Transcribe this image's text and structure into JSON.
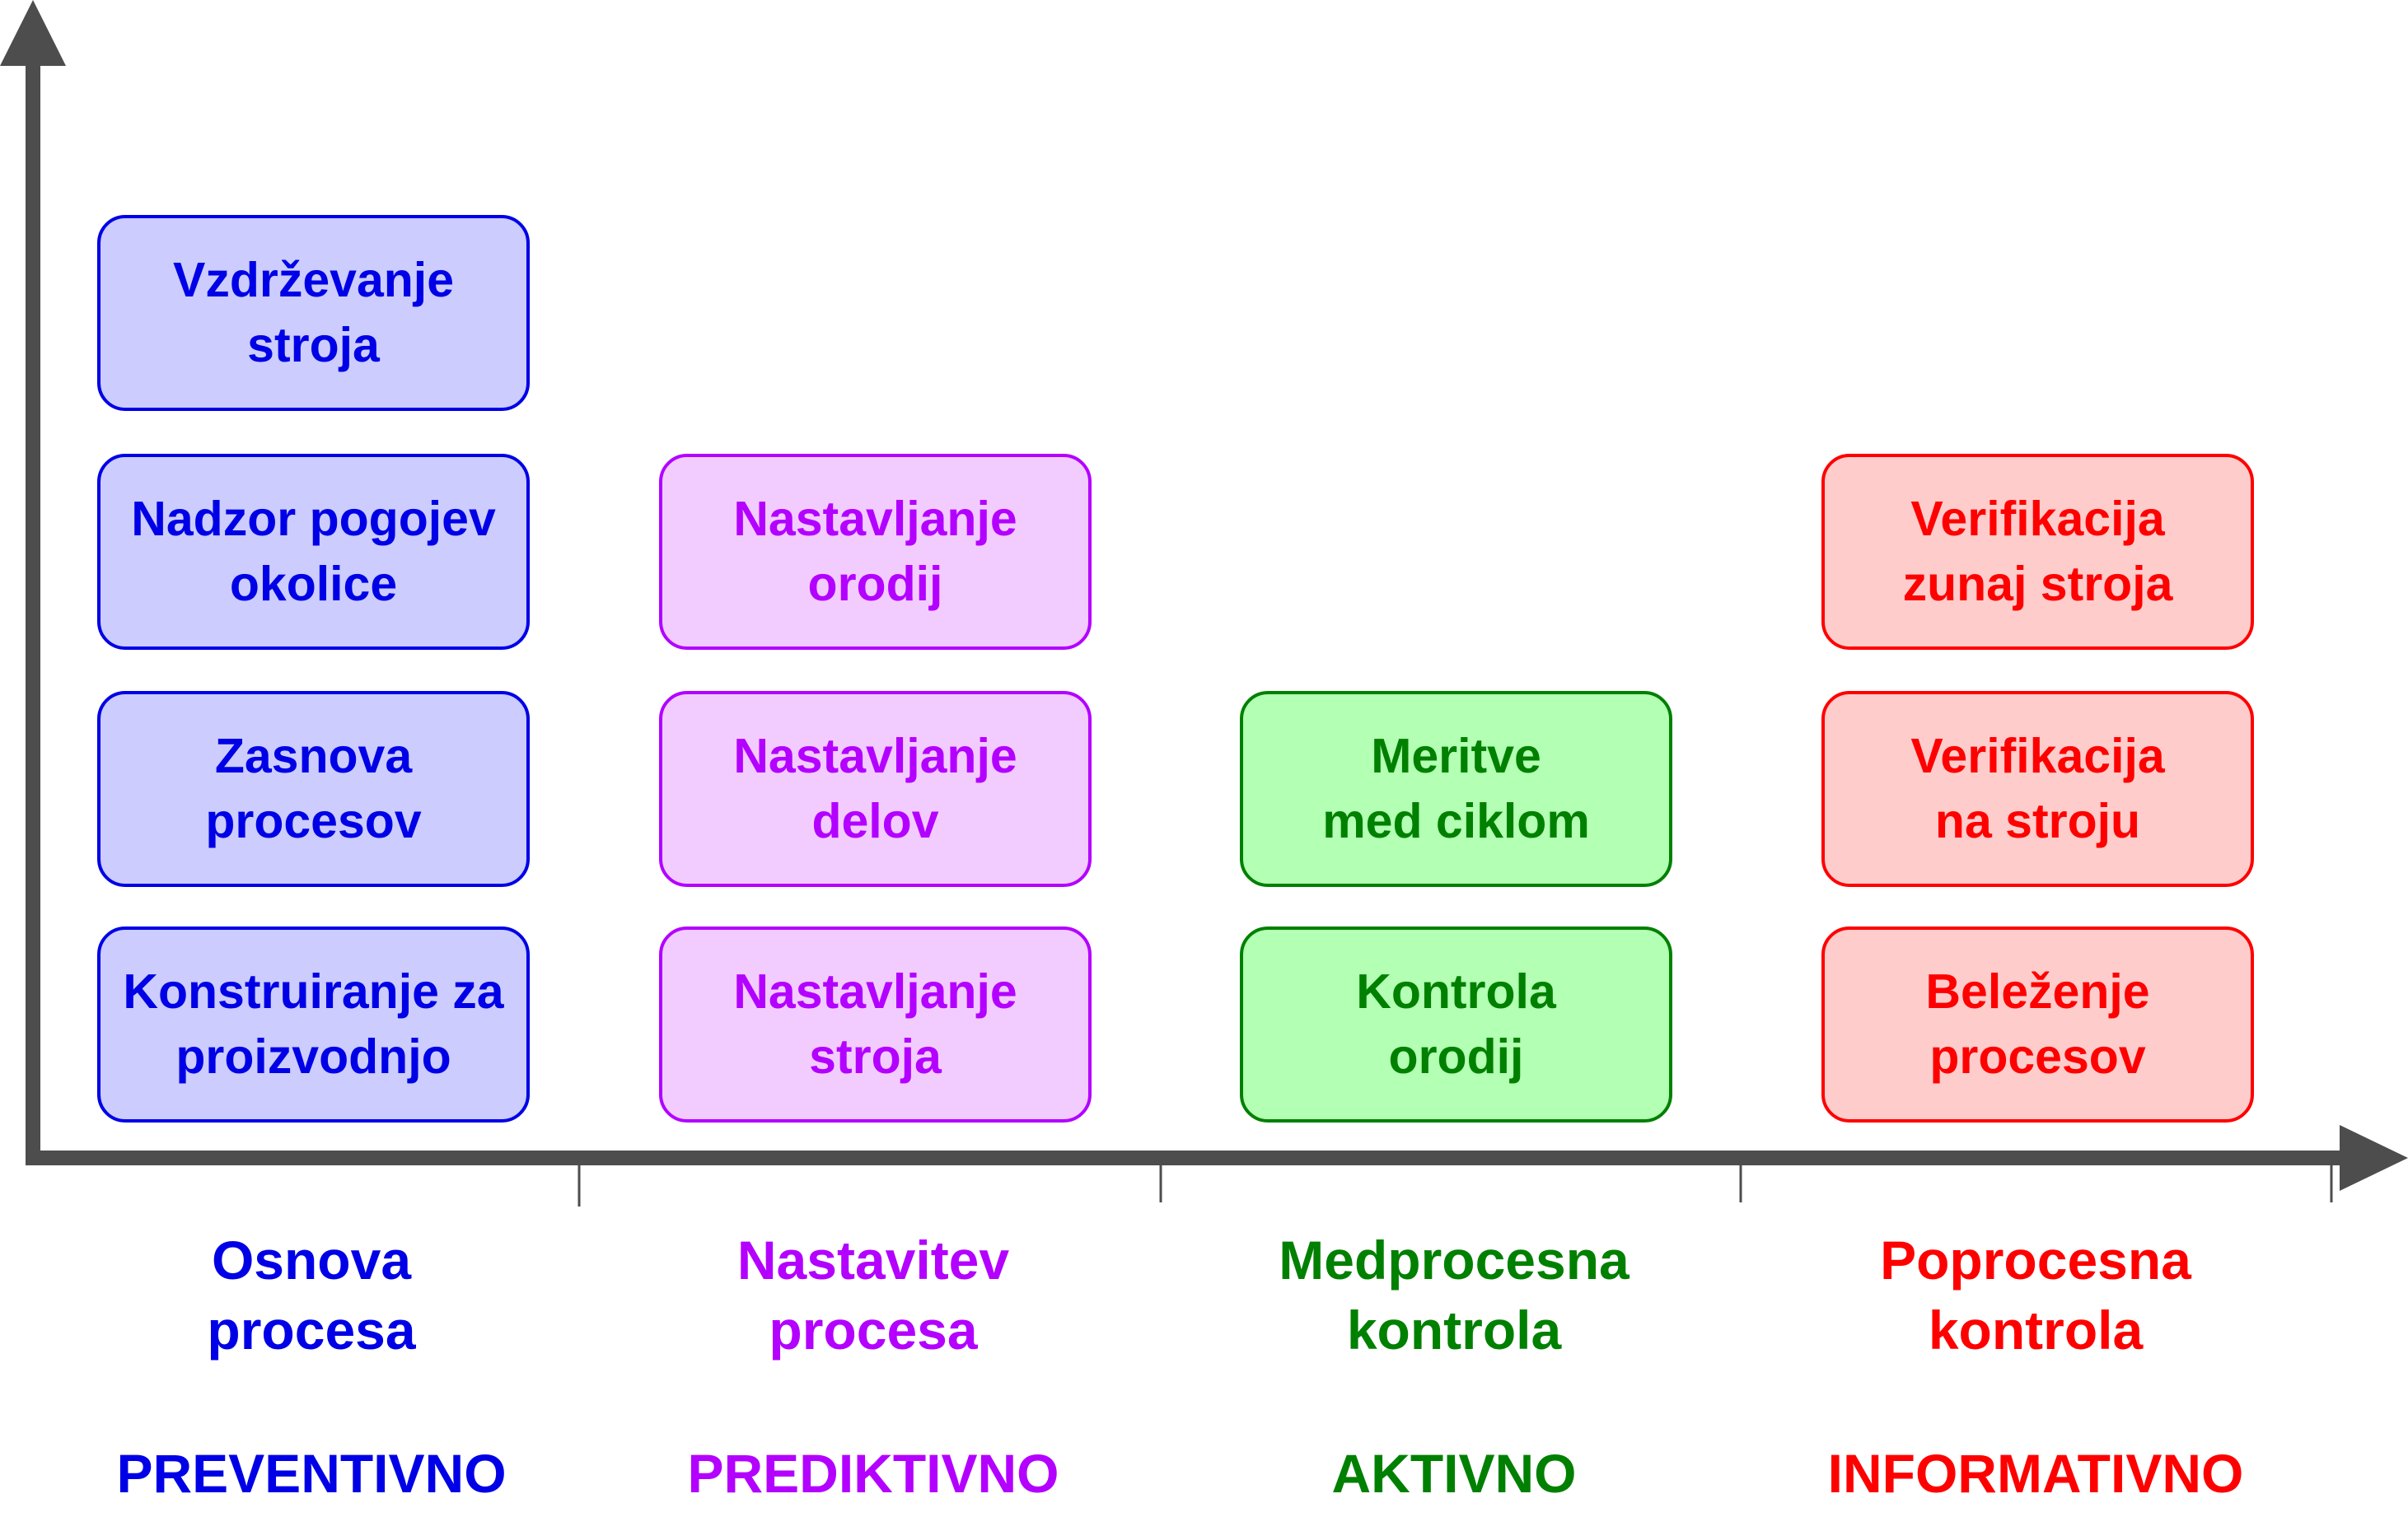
{
  "colors": {
    "axis": "#4d4d4d",
    "blue": {
      "text": "#0000e6",
      "fill": "#ccccff",
      "border": "#0000e6"
    },
    "purple": {
      "text": "#b300ff",
      "fill": "#f2ccff",
      "border": "#b300ff"
    },
    "green": {
      "text": "#008000",
      "fill": "#b3ffb3",
      "border": "#008000"
    },
    "red": {
      "text": "#ff0000",
      "fill": "#ffcccc",
      "border": "#ff0000"
    }
  },
  "columns": [
    {
      "label": "Osnova\nprocesa",
      "type": "PREVENTIVNO",
      "boxes": [
        "Vzdrževanje\nstroja",
        "Nadzor pogojev\nokolice",
        "Zasnova\nprocesov",
        "Konstruiranje za\nproizvodnjo"
      ]
    },
    {
      "label": "Nastavitev\nprocesa",
      "type": "PREDIKTIVNO",
      "boxes": [
        "Nastavljanje\norodij",
        "Nastavljanje\ndelov",
        "Nastavljanje\nstroja"
      ]
    },
    {
      "label": "Medprocesna\nkontrola",
      "type": "AKTIVNO",
      "boxes": [
        "Meritve\nmed ciklom",
        "Kontrola\norodij"
      ]
    },
    {
      "label": "Poprocesna\nkontrola",
      "type": "INFORMATIVNO",
      "boxes": [
        "Verifikacija\nzunaj stroja",
        "Verifikacija\nna stroju",
        "Beleženje\nprocesov"
      ]
    }
  ]
}
